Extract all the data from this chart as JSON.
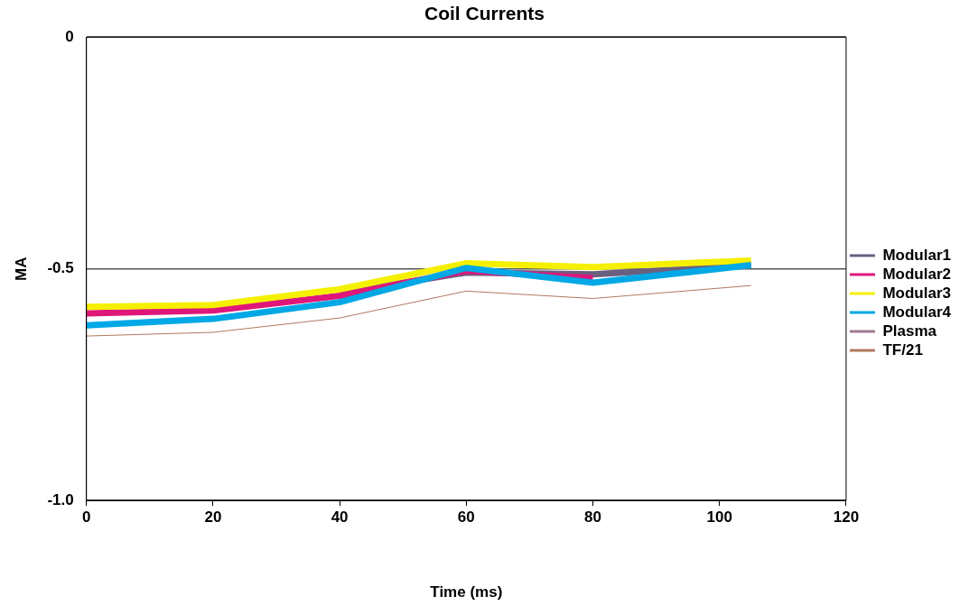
{
  "chart_data": {
    "type": "line",
    "title": "Coil Currents",
    "xlabel": "Time (ms)",
    "ylabel": "MA",
    "x": [
      0,
      20,
      40,
      60,
      80,
      105
    ],
    "series": [
      {
        "name": "Modular1",
        "color": "#6b5f80",
        "values": [
          null,
          null,
          -0.552,
          -0.508,
          -0.512,
          -0.492
        ]
      },
      {
        "name": "Modular2",
        "color": "#e0177a",
        "values": [
          -0.596,
          -0.59,
          -0.558,
          -0.504,
          -0.52,
          null
        ]
      },
      {
        "name": "Modular3",
        "color": "#f5f000",
        "values": [
          -0.582,
          -0.578,
          -0.544,
          -0.488,
          -0.496,
          -0.482
        ]
      },
      {
        "name": "Modular4",
        "color": "#00a8e6",
        "values": [
          -0.622,
          -0.608,
          -0.572,
          -0.498,
          -0.53,
          -0.492
        ]
      },
      {
        "name": "Plasma",
        "color": "#a07890",
        "values": [
          null,
          null,
          null,
          null,
          null,
          null
        ]
      },
      {
        "name": "TF/21",
        "color": "#b07a60",
        "values": [
          -0.645,
          -0.637,
          -0.606,
          -0.548,
          -0.564,
          -0.536
        ]
      }
    ],
    "xlim": [
      0,
      120
    ],
    "xticks": [
      0,
      20,
      40,
      60,
      80,
      100,
      120
    ],
    "ylim": [
      -1,
      0
    ],
    "yticks": [
      {
        "value": -1,
        "label": "-1.0"
      },
      -0.5,
      0
    ],
    "grid": "y",
    "legend": "right",
    "marker": "none",
    "line_style": "solid"
  }
}
